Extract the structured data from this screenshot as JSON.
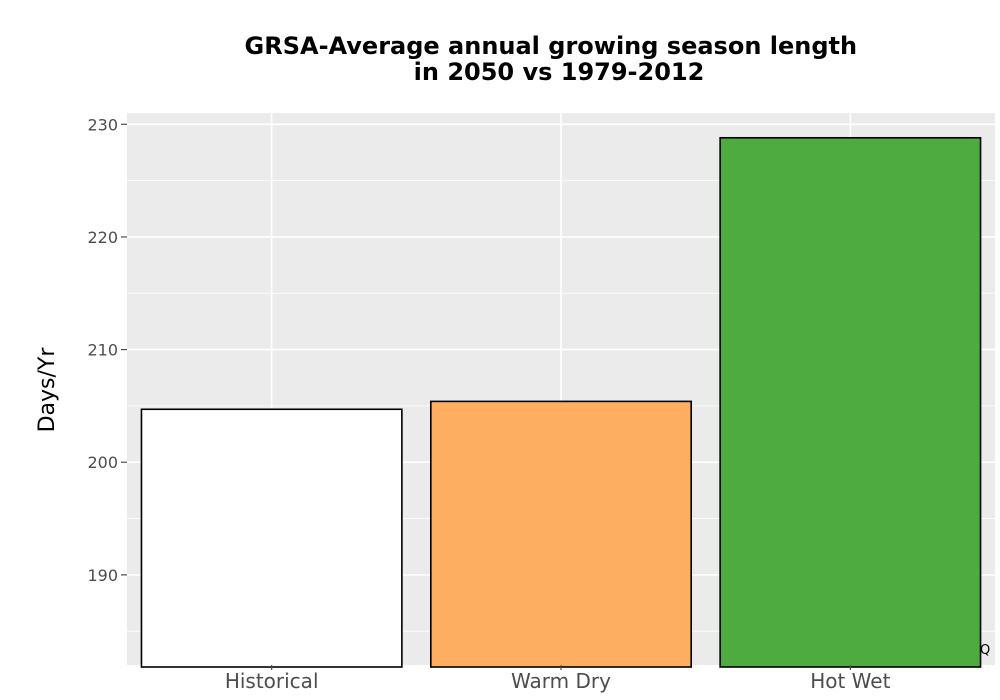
{
  "chart_data": {
    "type": "bar",
    "title": "GRSA-Average annual growing season length\nin 2050 vs 1979-2012",
    "title_lines": [
      "GRSA-Average annual growing season length",
      "in 2050 vs 1979-2012"
    ],
    "xlabel": "",
    "ylabel": "Days/Yr",
    "categories": [
      "Historical",
      "Warm Dry",
      "Hot Wet"
    ],
    "values": [
      204.7,
      205.4,
      228.8
    ],
    "colors": [
      "#ffffff",
      "#fdae61",
      "#4dab3f"
    ],
    "bar_outline": "#000000",
    "ylim": [
      182,
      231
    ],
    "yticks": [
      190,
      200,
      210,
      220,
      230
    ],
    "ytick_labels": [
      "190",
      "200",
      "210",
      "220",
      "230"
    ],
    "grid": true,
    "panel_background": "#ebebeb",
    "grid_color": "#ffffff",
    "corner_mark": "Q"
  }
}
